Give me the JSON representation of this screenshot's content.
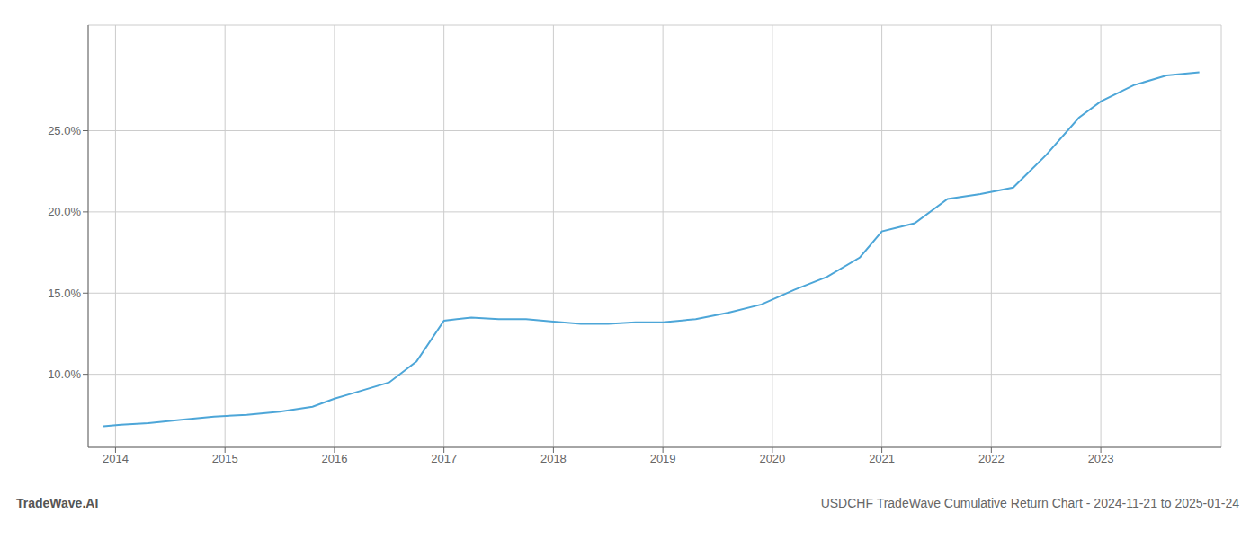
{
  "chart_data": {
    "type": "line",
    "title": "USDCHF TradeWave Cumulative Return Chart - 2024-11-21 to 2025-01-24",
    "annotations": [
      "TradeWave.AI"
    ],
    "x": [
      2013.89,
      2014.05,
      2014.3,
      2014.6,
      2014.9,
      2015.2,
      2015.5,
      2015.8,
      2016.0,
      2016.15,
      2016.5,
      2016.75,
      2017.0,
      2017.25,
      2017.5,
      2017.75,
      2018.0,
      2018.25,
      2018.5,
      2018.75,
      2019.0,
      2019.3,
      2019.6,
      2019.9,
      2020.2,
      2020.5,
      2020.8,
      2021.0,
      2021.3,
      2021.6,
      2021.9,
      2022.2,
      2022.5,
      2022.8,
      2023.0,
      2023.3,
      2023.6,
      2023.9
    ],
    "values": [
      6.8,
      6.9,
      7.0,
      7.2,
      7.4,
      7.5,
      7.7,
      8.0,
      8.5,
      8.8,
      9.5,
      10.8,
      13.3,
      13.5,
      13.4,
      13.4,
      13.25,
      13.1,
      13.1,
      13.2,
      13.2,
      13.4,
      13.8,
      14.3,
      15.2,
      16.0,
      17.2,
      18.8,
      19.3,
      20.8,
      21.1,
      21.5,
      23.5,
      25.8,
      26.8,
      27.8,
      28.4,
      28.6
    ],
    "color": "#4da6d8",
    "xlim": [
      2013.75,
      2024.1
    ],
    "xticks": [
      2014,
      2015,
      2016,
      2017,
      2018,
      2019,
      2020,
      2021,
      2022,
      2023
    ],
    "ylim": [
      5.5,
      31.5
    ],
    "yticks": [
      {
        "value": 10.0,
        "label": "10.0%"
      },
      {
        "value": 15.0,
        "label": "15.0%"
      },
      {
        "value": 20.0,
        "label": "20.0%"
      },
      {
        "value": 25.0,
        "label": "25.0%"
      }
    ],
    "grid": true
  }
}
